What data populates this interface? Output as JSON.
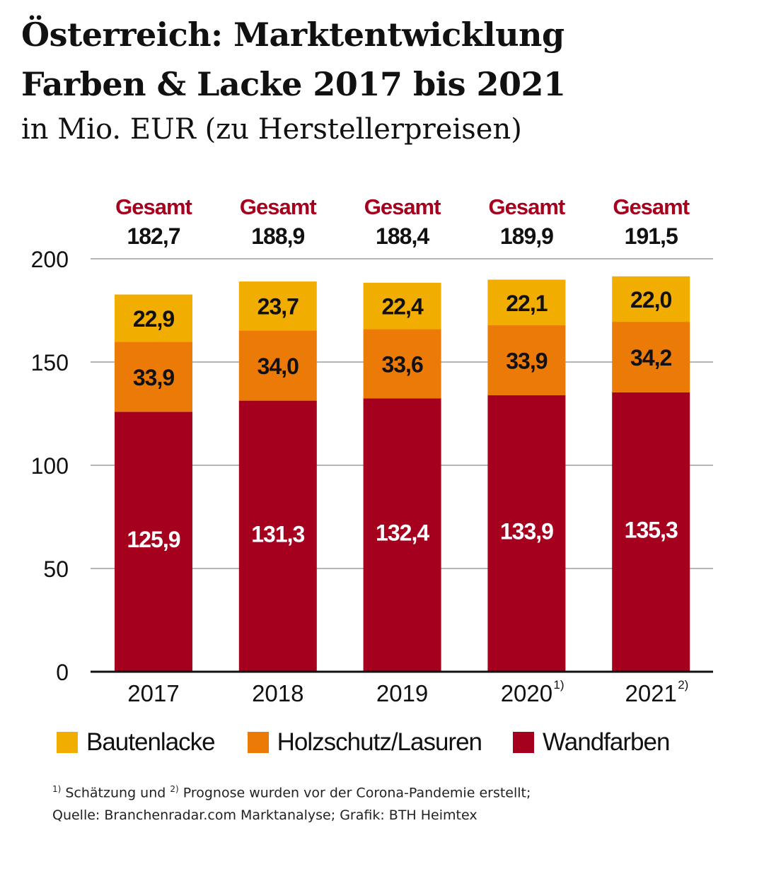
{
  "title_line1": "Österreich: Marktentwicklung",
  "title_line2": "Farben & Lacke 2017 bis 2021",
  "subtitle": "in Mio. EUR (zu Herstellerpreisen)",
  "chart_data": {
    "type": "bar",
    "stacked": true,
    "title": "Österreich: Marktentwicklung Farben & Lacke 2017 bis 2021",
    "subtitle": "in Mio. EUR (zu Herstellerpreisen)",
    "categories": [
      "2017",
      "2018",
      "2019",
      "2020",
      "2021"
    ],
    "category_superscripts": [
      "",
      "",
      "",
      "1)",
      "2)"
    ],
    "series": [
      {
        "name": "Wandfarben",
        "color": "#A6001F",
        "values": [
          125.9,
          131.3,
          132.4,
          133.9,
          135.3
        ],
        "labels": [
          "125,9",
          "131,3",
          "132,4",
          "133,9",
          "135,3"
        ]
      },
      {
        "name": "Holzschutz/Lasuren",
        "color": "#EC7A07",
        "values": [
          33.9,
          34.0,
          33.6,
          33.9,
          34.2
        ],
        "labels": [
          "33,9",
          "34,0",
          "33,6",
          "33,9",
          "34,2"
        ]
      },
      {
        "name": "Bautenlacke",
        "color": "#F2AE00",
        "values": [
          22.9,
          23.7,
          22.4,
          22.1,
          22.0
        ],
        "labels": [
          "22,9",
          "23,7",
          "22,4",
          "22,1",
          "22,0"
        ]
      }
    ],
    "totals_label": "Gesamt",
    "totals_label_color": "#A6001F",
    "totals": [
      "182,7",
      "188,9",
      "188,4",
      "189,9",
      "191,5"
    ],
    "ylim": [
      0,
      200
    ],
    "yticks": [
      0,
      50,
      100,
      150,
      200
    ],
    "grid": true,
    "legend": "bottom"
  },
  "footnote_line1_parts": [
    "1)",
    " Schätzung und ",
    "2)",
    " Prognose wurden vor der Corona-Pandemie erstellt;"
  ],
  "footnote_line2": "Quelle: Branchenradar.com Marktanalyse; Grafik: BTH Heimtex"
}
